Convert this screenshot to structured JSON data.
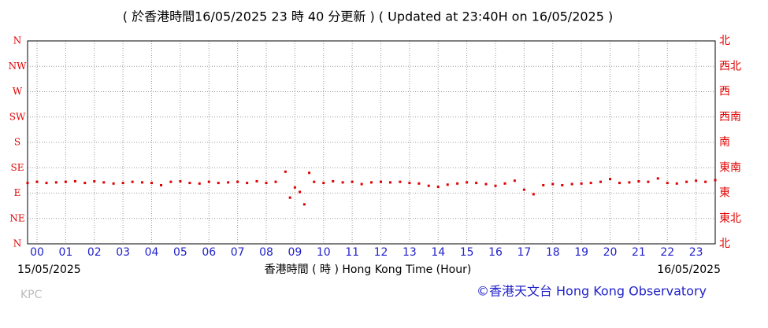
{
  "chart_data": {
    "type": "scatter",
    "title": "( 於香港時間16/05/2025 23 時 40 分更新 ) ( Updated at 23:40H on 16/05/2025 )",
    "x_label": "香港時間 ( 時 ) Hong Kong Time (Hour)",
    "start_date": "15/05/2025",
    "end_date": "16/05/2025",
    "station": "KPC",
    "credit": "©香港天文台 Hong Kong Observatory",
    "color": "#e00000",
    "grid": true,
    "xlim": [
      -0.33,
      23.67
    ],
    "xticks": [
      {
        "value": 0,
        "label": "00"
      },
      {
        "value": 1,
        "label": "01"
      },
      {
        "value": 2,
        "label": "02"
      },
      {
        "value": 3,
        "label": "03"
      },
      {
        "value": 4,
        "label": "04"
      },
      {
        "value": 5,
        "label": "05"
      },
      {
        "value": 6,
        "label": "06"
      },
      {
        "value": 7,
        "label": "07"
      },
      {
        "value": 8,
        "label": "08"
      },
      {
        "value": 9,
        "label": "09"
      },
      10,
      11,
      12,
      13,
      14,
      15,
      16,
      17,
      18,
      19,
      20,
      21,
      22,
      23
    ],
    "ylim": [
      0,
      360
    ],
    "yticks": [
      {
        "value": 360,
        "label": "N"
      },
      {
        "value": 315,
        "label": "NW"
      },
      {
        "value": 270,
        "label": "W"
      },
      {
        "value": 225,
        "label": "SW"
      },
      {
        "value": 180,
        "label": "S"
      },
      {
        "value": 135,
        "label": "SE"
      },
      {
        "value": 90,
        "label": "E"
      },
      {
        "value": 45,
        "label": "NE"
      },
      {
        "value": 0,
        "label": "N"
      }
    ],
    "y2lim": [
      0,
      360
    ],
    "y2ticks": [
      {
        "value": 360,
        "label": "北"
      },
      {
        "value": 315,
        "label": "西北"
      },
      {
        "value": 270,
        "label": "西"
      },
      {
        "value": 225,
        "label": "西南"
      },
      {
        "value": 180,
        "label": "南"
      },
      {
        "value": 135,
        "label": "東南"
      },
      {
        "value": 90,
        "label": "東"
      },
      {
        "value": 45,
        "label": "東北"
      },
      {
        "value": 0,
        "label": "北"
      }
    ],
    "x": [
      -0.33,
      0,
      0.33,
      0.67,
      1,
      1.33,
      1.67,
      2,
      2.33,
      2.67,
      3,
      3.33,
      3.67,
      4,
      4.33,
      4.67,
      5,
      5.33,
      5.67,
      6,
      6.33,
      6.67,
      7,
      7.33,
      7.67,
      8,
      8.33,
      8.67,
      8.83,
      9,
      9.17,
      9.33,
      9.5,
      9.67,
      10,
      10.33,
      10.67,
      11,
      11.33,
      11.67,
      12,
      12.33,
      12.67,
      13,
      13.33,
      13.67,
      14,
      14.33,
      14.67,
      15,
      15.33,
      15.67,
      16,
      16.33,
      16.67,
      17,
      17.33,
      17.67,
      18,
      18.33,
      18.67,
      19,
      19.33,
      19.67,
      20,
      20.33,
      20.67,
      21,
      21.33,
      21.67,
      22,
      22.33,
      22.67,
      23,
      23.33,
      23.67
    ],
    "values": [
      108,
      110,
      108,
      109,
      110,
      111,
      108,
      111,
      109,
      107,
      108,
      110,
      109,
      108,
      104,
      110,
      111,
      108,
      107,
      110,
      108,
      109,
      110,
      108,
      111,
      108,
      110,
      128,
      82,
      100,
      92,
      70,
      126,
      110,
      108,
      111,
      109,
      110,
      106,
      109,
      110,
      109,
      110,
      108,
      107,
      103,
      101,
      105,
      107,
      109,
      108,
      106,
      103,
      107,
      112,
      96,
      88,
      104,
      106,
      104,
      106,
      107,
      108,
      110,
      115,
      108,
      109,
      111,
      110,
      116,
      108,
      107,
      110,
      112,
      110,
      113
    ]
  }
}
